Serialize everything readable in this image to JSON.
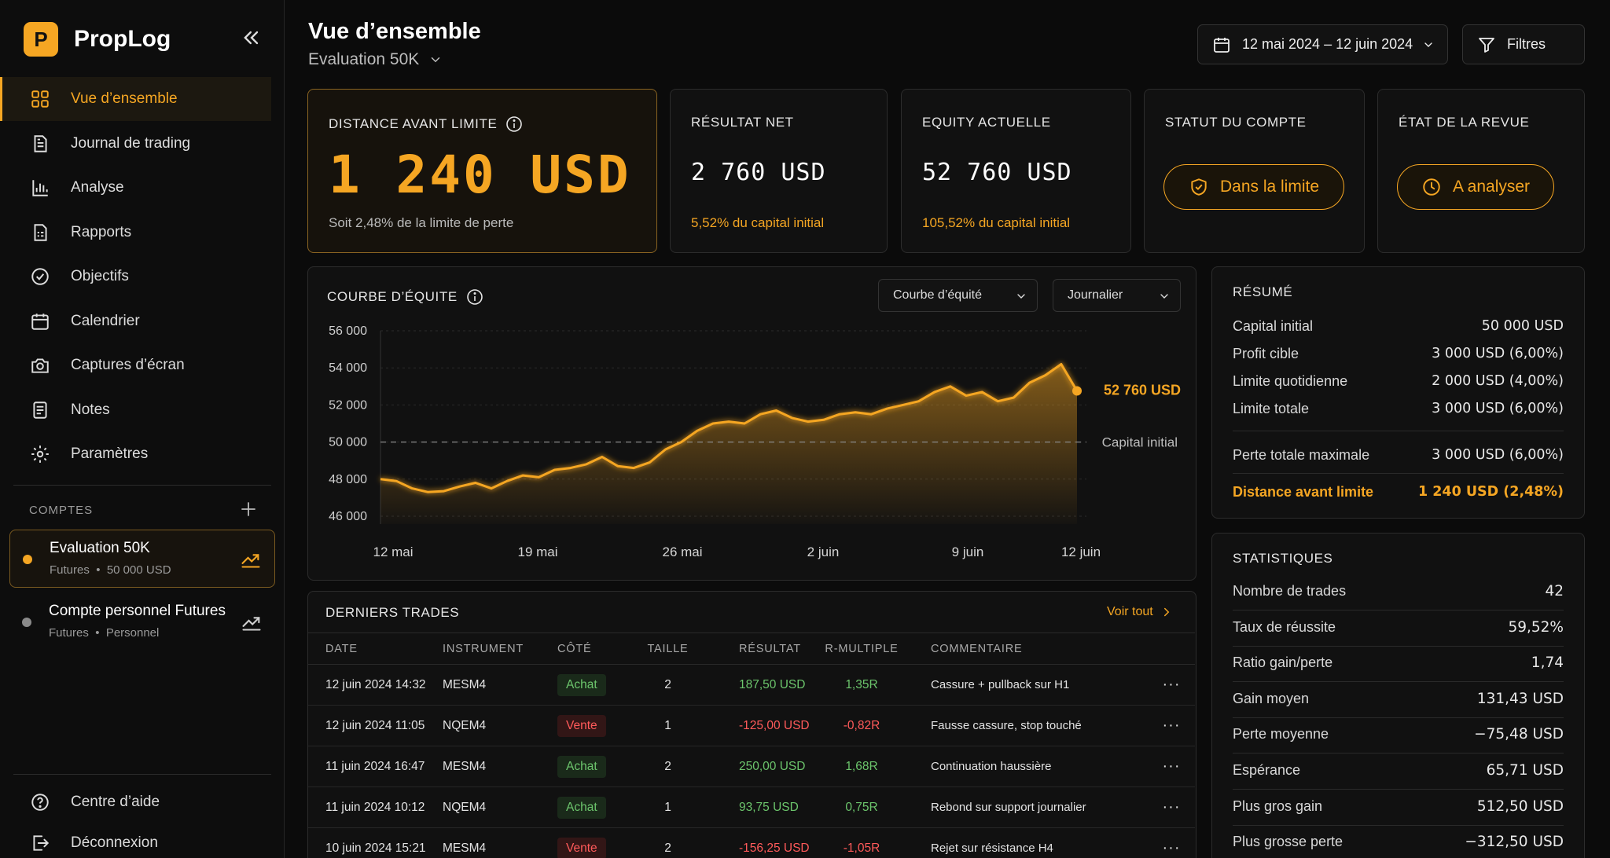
{
  "app": {
    "logo_letter": "P",
    "name": "PropLog"
  },
  "nav": [
    {
      "label": "Vue d’ensemble",
      "icon": "grid-icon",
      "active": true
    },
    {
      "label": "Journal de trading",
      "icon": "journal-icon"
    },
    {
      "label": "Analyse",
      "icon": "bar-chart-icon"
    },
    {
      "label": "Rapports",
      "icon": "report-icon"
    },
    {
      "label": "Objectifs",
      "icon": "target-check-icon"
    },
    {
      "label": "Calendrier",
      "icon": "calendar-icon"
    },
    {
      "label": "Captures d’écran",
      "icon": "camera-icon"
    },
    {
      "label": "Notes",
      "icon": "notes-icon"
    },
    {
      "label": "Paramètres",
      "icon": "gear-icon"
    }
  ],
  "accounts": {
    "title": "COMPTES",
    "items": [
      {
        "name": "Evaluation 50K",
        "type": "Futures",
        "sep": "•",
        "detail": "50 000 USD",
        "color": "#f5a623"
      },
      {
        "name": "Compte personnel Futures",
        "type": "Futures",
        "sep": "•",
        "detail": "Personnel",
        "color": "#8a8a8a"
      }
    ]
  },
  "footer_nav": {
    "help": "Centre d’aide",
    "logout": "Déconnexion"
  },
  "header": {
    "title": "Vue d’ensemble",
    "account": "Evaluation 50K",
    "date_range": "12 mai 2024 – 12 juin 2024",
    "filters": "Filtres"
  },
  "kpis": {
    "distance": {
      "label": "DISTANCE AVANT LIMITE",
      "value": "1 240 USD",
      "sub": "Soit 2,48% de la limite de perte"
    },
    "net": {
      "label": "RÉSULTAT NET",
      "value": "2 760 USD",
      "sub": "5,52% du capital initial"
    },
    "equity": {
      "label": "EQUITY ACTUELLE",
      "value": "52 760 USD",
      "sub": "105,52% du capital initial"
    },
    "status": {
      "label": "STATUT DU COMPTE",
      "value": "Dans la limite"
    },
    "review": {
      "label": "ÉTAT DE LA REVUE",
      "value": "A analyser"
    }
  },
  "chart": {
    "title": "COURBE D’ÉQUITE",
    "select_type": "Courbe d’équité",
    "select_period": "Journalier",
    "last_label": "52 760 USD",
    "baseline_label": "Capital initial"
  },
  "chart_data": {
    "type": "area",
    "x_ticks": [
      "12 mai",
      "19 mai",
      "26 mai",
      "2 juin",
      "9 juin",
      "12 juin"
    ],
    "y_ticks": [
      "56 000",
      "54 000",
      "52 000",
      "50 000",
      "48 000",
      "46 000"
    ],
    "ylim": [
      46000,
      56000
    ],
    "baseline": 50000,
    "values": [
      48000,
      47900,
      47500,
      47300,
      47350,
      47600,
      47800,
      47500,
      47900,
      48200,
      48100,
      48500,
      48600,
      48800,
      49200,
      48700,
      48600,
      48900,
      49600,
      50000,
      50600,
      51000,
      51100,
      51000,
      51500,
      51700,
      51300,
      51100,
      51200,
      51500,
      51600,
      51500,
      51800,
      52000,
      52200,
      52700,
      53000,
      52500,
      52700,
      52200,
      52400,
      53200,
      53600,
      54200,
      52760
    ],
    "colors": {
      "line": "#f5a623",
      "baseline": "#8a8a8a"
    }
  },
  "summary": {
    "title": "RÉSUMÉ",
    "rows": [
      {
        "label": "Capital initial",
        "value": "50 000 USD"
      },
      {
        "label": "Profit cible",
        "value": "3 000 USD (6,00%)"
      },
      {
        "label": "Limite quotidienne",
        "value": "2 000 USD (4,00%)"
      },
      {
        "label": "Limite totale",
        "value": "3 000 USD (6,00%)"
      },
      {
        "label": "Perte totale maximale",
        "value": "3 000 USD (6,00%)"
      },
      {
        "label": "Distance avant limite",
        "value": "1 240 USD (2,48%)"
      }
    ]
  },
  "stats": {
    "title": "STATISTIQUES",
    "rows": [
      {
        "label": "Nombre de trades",
        "value": "42"
      },
      {
        "label": "Taux de réussite",
        "value": "59,52%"
      },
      {
        "label": "Ratio gain/perte",
        "value": "1,74"
      },
      {
        "label": "Gain moyen",
        "value": "131,43 USD"
      },
      {
        "label": "Perte moyenne",
        "value": "−75,48 USD"
      },
      {
        "label": "Espérance",
        "value": "65,71 USD"
      },
      {
        "label": "Plus gros gain",
        "value": "512,50 USD"
      },
      {
        "label": "Plus grosse perte",
        "value": "−312,50 USD"
      }
    ]
  },
  "trades": {
    "title": "DERNIERS TRADES",
    "see_all": "Voir tout",
    "columns": [
      "DATE",
      "INSTRUMENT",
      "CÔTÉ",
      "TAILLE",
      "RÉSULTAT",
      "R-MULTIPLE",
      "COMMENTAIRE"
    ],
    "more": "···",
    "rows": [
      {
        "date": "12 juin 2024 14:32",
        "instrument": "MESM4",
        "side": "Achat",
        "size": "2",
        "result": "187,50 USD",
        "r": "1,35R",
        "comment": "Cassure + pullback sur H1"
      },
      {
        "date": "12 juin 2024 11:05",
        "instrument": "NQEM4",
        "side": "Vente",
        "size": "1",
        "result": "-125,00 USD",
        "r": "-0,82R",
        "comment": "Fausse cassure, stop touché"
      },
      {
        "date": "11 juin 2024 16:47",
        "instrument": "MESM4",
        "side": "Achat",
        "size": "2",
        "result": "250,00 USD",
        "r": "1,68R",
        "comment": "Continuation haussière"
      },
      {
        "date": "11 juin 2024 10:12",
        "instrument": "NQEM4",
        "side": "Achat",
        "size": "1",
        "result": "93,75 USD",
        "r": "0,75R",
        "comment": "Rebond sur support journalier"
      },
      {
        "date": "10 juin 2024 15:21",
        "instrument": "MESM4",
        "side": "Vente",
        "size": "2",
        "result": "-156,25 USD",
        "r": "-1,05R",
        "comment": "Rejet sur résistance H4"
      }
    ]
  }
}
